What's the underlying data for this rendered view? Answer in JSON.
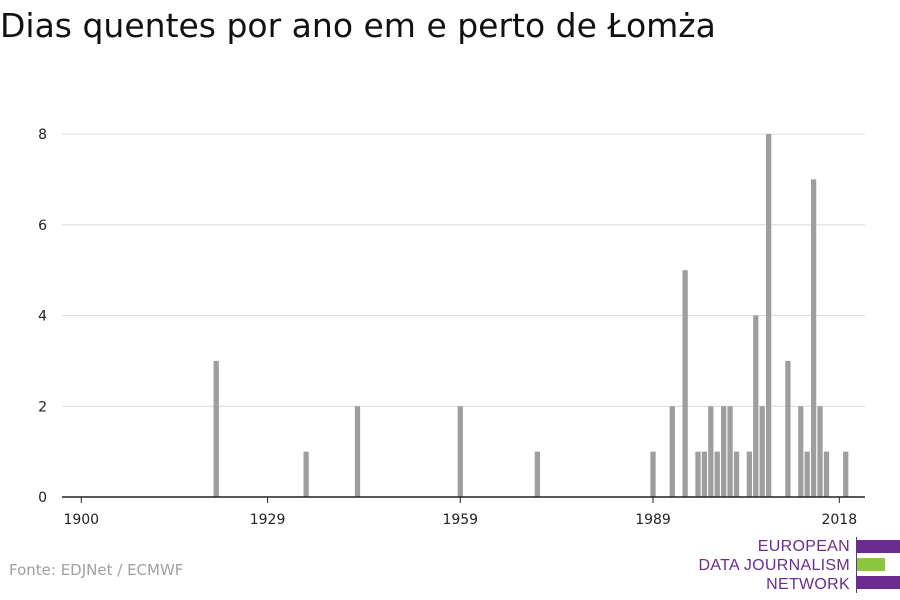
{
  "title": "Dias quentes por ano em e perto de Łomża",
  "source": "Fonte: EDJNet / ECMWF",
  "logo": {
    "lines": [
      "EUROPEAN",
      "DATA JOURNALISM",
      "NETWORK"
    ],
    "colors": {
      "purple": "#6a2c91",
      "green": "#8cc63f"
    }
  },
  "chart_data": {
    "type": "bar",
    "title": "Dias quentes por ano em e perto de Łomża",
    "xlabel": "",
    "ylabel": "",
    "xlim": [
      1897,
      2022
    ],
    "ylim": [
      0,
      8
    ],
    "x_ticks": [
      1900,
      1929,
      1959,
      1989,
      2018
    ],
    "y_ticks": [
      0,
      2,
      4,
      6,
      8
    ],
    "grid": true,
    "bar_color": "#9e9e9e",
    "x": [
      1921,
      1935,
      1943,
      1959,
      1971,
      1989,
      1992,
      1994,
      1996,
      1997,
      1998,
      1999,
      2000,
      2001,
      2002,
      2004,
      2005,
      2006,
      2007,
      2010,
      2012,
      2013,
      2014,
      2015,
      2016,
      2019
    ],
    "values": [
      3,
      1,
      2,
      2,
      1,
      1,
      2,
      5,
      1,
      1,
      2,
      1,
      2,
      2,
      1,
      1,
      4,
      2,
      8,
      3,
      2,
      1,
      7,
      2,
      1,
      1
    ]
  }
}
